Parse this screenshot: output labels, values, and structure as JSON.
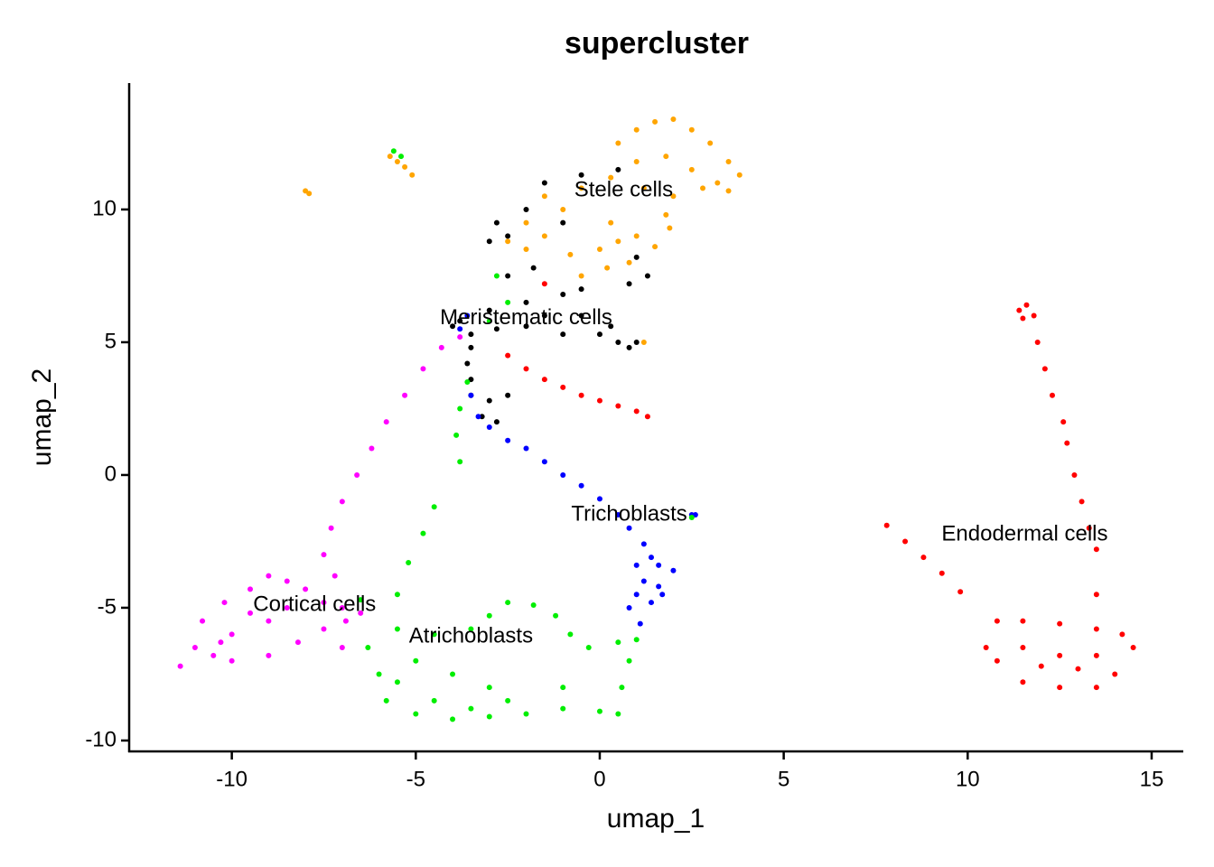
{
  "chart_data": {
    "type": "scatter",
    "title": "supercluster",
    "xlabel": "umap_1",
    "ylabel": "umap_2",
    "xlim": [
      -12.79,
      15.86
    ],
    "ylim": [
      -10.41,
      14.76
    ],
    "xticks": [
      -10,
      -5,
      0,
      5,
      10,
      15
    ],
    "yticks": [
      -10,
      -5,
      0,
      5,
      10
    ],
    "series": [
      {
        "name": "Stele cells",
        "color": "#ffa500",
        "x": [
          -5.7,
          -5.5,
          -5.3,
          -5.1,
          -8.0,
          -7.9,
          0.5,
          1.0,
          1.5,
          2.0,
          2.5,
          3.0,
          3.5,
          3.8,
          3.2,
          2.5,
          1.8,
          1.0,
          0.3,
          -0.5,
          1.2,
          2.0,
          2.8,
          3.5,
          -1.5,
          -1.0,
          -2.0,
          -2.5,
          -2.0,
          -1.5,
          -0.8,
          0.0,
          0.5,
          1.0,
          1.5,
          0.8,
          0.2,
          -0.5,
          1.8,
          1.9,
          0.3,
          1.2
        ],
        "y": [
          12.0,
          11.8,
          11.6,
          11.3,
          10.7,
          10.6,
          12.5,
          13.0,
          13.3,
          13.4,
          13.0,
          12.5,
          11.8,
          11.3,
          11.0,
          11.5,
          12.0,
          11.8,
          11.2,
          10.8,
          10.8,
          10.5,
          10.8,
          10.7,
          10.5,
          10.0,
          9.5,
          8.8,
          8.5,
          9.0,
          8.3,
          8.5,
          8.8,
          9.0,
          8.6,
          8.0,
          7.8,
          7.5,
          9.8,
          9.3,
          9.5,
          5.0
        ]
      },
      {
        "name": "Meristematic cells",
        "color": "#000000",
        "x": [
          -1.5,
          -0.5,
          0.5,
          -2.0,
          -2.8,
          -2.5,
          -3.0,
          -1.0,
          1.0,
          1.3,
          0.8,
          -0.5,
          -1.0,
          -2.0,
          -3.0,
          -3.8,
          -4.0,
          -3.5,
          -2.8,
          -2.0,
          -1.0,
          0.0,
          0.5,
          1.0,
          0.8,
          -3.5,
          -3.6,
          -3.5,
          -3.5,
          -3.0,
          -2.5,
          -3.2,
          -2.8,
          -1.5,
          -0.5,
          0.3,
          -2.5,
          -1.8
        ],
        "y": [
          11.0,
          11.3,
          11.5,
          10.0,
          9.5,
          9.0,
          8.8,
          9.5,
          8.2,
          7.5,
          7.2,
          7.0,
          6.8,
          6.5,
          6.2,
          5.8,
          5.6,
          5.3,
          5.5,
          5.6,
          5.3,
          5.3,
          5.0,
          5.0,
          4.8,
          4.8,
          4.2,
          3.6,
          3.0,
          2.8,
          3.0,
          2.2,
          2.0,
          6.0,
          6.0,
          5.6,
          7.5,
          7.8
        ]
      },
      {
        "name": "Trichoblasts",
        "color": "#0000ff",
        "x": [
          -3.5,
          -3.3,
          -3.0,
          -2.5,
          -2.0,
          -1.5,
          -1.0,
          -0.5,
          0.0,
          0.5,
          0.8,
          1.2,
          1.4,
          1.0,
          1.6,
          2.0,
          1.2,
          1.6,
          1.0,
          1.4,
          1.7,
          0.8,
          1.1,
          2.6,
          2.5,
          -3.8,
          -3.6
        ],
        "y": [
          3.0,
          2.2,
          1.8,
          1.3,
          1.0,
          0.5,
          0.0,
          -0.4,
          -0.9,
          -1.5,
          -2.0,
          -2.6,
          -3.1,
          -3.4,
          -3.4,
          -3.6,
          -4.0,
          -4.2,
          -4.5,
          -4.8,
          -4.5,
          -5.0,
          -5.6,
          -1.5,
          -1.5,
          5.5,
          6.0
        ]
      },
      {
        "name": "Endodermal cells",
        "color": "#ff0000",
        "x": [
          11.4,
          11.6,
          11.8,
          11.5,
          11.9,
          12.1,
          12.3,
          12.6,
          12.7,
          12.9,
          13.1,
          13.3,
          13.5,
          13.5,
          7.8,
          8.3,
          8.8,
          9.3,
          9.8,
          10.8,
          11.5,
          12.5,
          13.5,
          14.2,
          14.5,
          14.0,
          13.5,
          12.5,
          11.5,
          10.8,
          10.5,
          11.5,
          12.5,
          13.5,
          12.0,
          13.0,
          -2.5,
          -2.0,
          -1.5,
          -1.0,
          -0.5,
          0.0,
          0.5,
          1.0,
          1.3,
          -1.5
        ],
        "y": [
          6.2,
          6.4,
          6.0,
          5.9,
          5.0,
          4.0,
          3.0,
          2.0,
          1.2,
          0.0,
          -1.0,
          -2.0,
          -2.8,
          -4.5,
          -1.9,
          -2.5,
          -3.1,
          -3.7,
          -4.4,
          -5.5,
          -5.5,
          -5.6,
          -5.8,
          -6.0,
          -6.5,
          -7.5,
          -8.0,
          -8.0,
          -7.8,
          -7.0,
          -6.5,
          -6.5,
          -6.8,
          -6.8,
          -7.2,
          -7.3,
          4.5,
          4.0,
          3.6,
          3.3,
          3.0,
          2.8,
          2.6,
          2.4,
          2.2,
          7.2
        ]
      },
      {
        "name": "Cortical cells",
        "color": "#ff00ff",
        "x": [
          -11.4,
          -11.0,
          -10.8,
          -10.2,
          -9.5,
          -9.0,
          -8.5,
          -8.0,
          -7.5,
          -7.0,
          -6.9,
          -7.5,
          -8.2,
          -9.0,
          -10.0,
          -10.5,
          -10.0,
          -9.0,
          -8.5,
          -9.5,
          -10.3,
          -7.2,
          -7.5,
          -7.3,
          -7.0,
          -6.6,
          -6.2,
          -5.8,
          -5.3,
          -4.8,
          -4.3,
          -3.8,
          -7.0,
          -6.5
        ],
        "y": [
          -7.2,
          -6.5,
          -5.5,
          -4.8,
          -4.3,
          -3.8,
          -4.0,
          -4.3,
          -4.8,
          -5.0,
          -5.5,
          -5.8,
          -6.3,
          -6.8,
          -7.0,
          -6.8,
          -6.0,
          -5.5,
          -5.0,
          -5.2,
          -6.3,
          -3.8,
          -3.0,
          -2.0,
          -1.0,
          0.0,
          1.0,
          2.0,
          3.0,
          4.0,
          4.8,
          5.2,
          -6.5,
          -5.2
        ]
      },
      {
        "name": "Atrichoblasts",
        "color": "#00ee00",
        "x": [
          -6.3,
          -6.0,
          -5.8,
          -5.0,
          -4.0,
          -3.0,
          -2.0,
          -1.0,
          0.0,
          0.5,
          0.6,
          0.8,
          1.0,
          0.5,
          -0.3,
          -0.8,
          -1.2,
          -1.8,
          -2.5,
          -3.0,
          -3.5,
          -4.5,
          -5.5,
          -5.0,
          -4.0,
          -3.0,
          -4.5,
          -3.5,
          -2.5,
          -5.5,
          -4.5,
          -4.8,
          -5.2,
          -5.5,
          -6.5,
          -3.8,
          -3.9,
          -3.8,
          -3.6,
          -3.0,
          -2.5,
          -2.8,
          -5.6,
          -5.4,
          -1.0,
          2.5
        ],
        "y": [
          -6.5,
          -7.5,
          -8.5,
          -9.0,
          -9.2,
          -9.1,
          -9.0,
          -8.8,
          -8.9,
          -9.0,
          -8.0,
          -7.0,
          -6.2,
          -6.3,
          -6.5,
          -6.0,
          -5.3,
          -4.9,
          -4.8,
          -5.3,
          -5.8,
          -6.0,
          -5.8,
          -7.0,
          -7.5,
          -8.0,
          -8.5,
          -8.8,
          -8.5,
          -7.8,
          -1.2,
          -2.2,
          -3.3,
          -4.5,
          -4.7,
          0.5,
          1.5,
          2.5,
          3.5,
          5.8,
          6.5,
          7.5,
          12.2,
          12.0,
          -8.0,
          -1.6
        ]
      }
    ]
  }
}
